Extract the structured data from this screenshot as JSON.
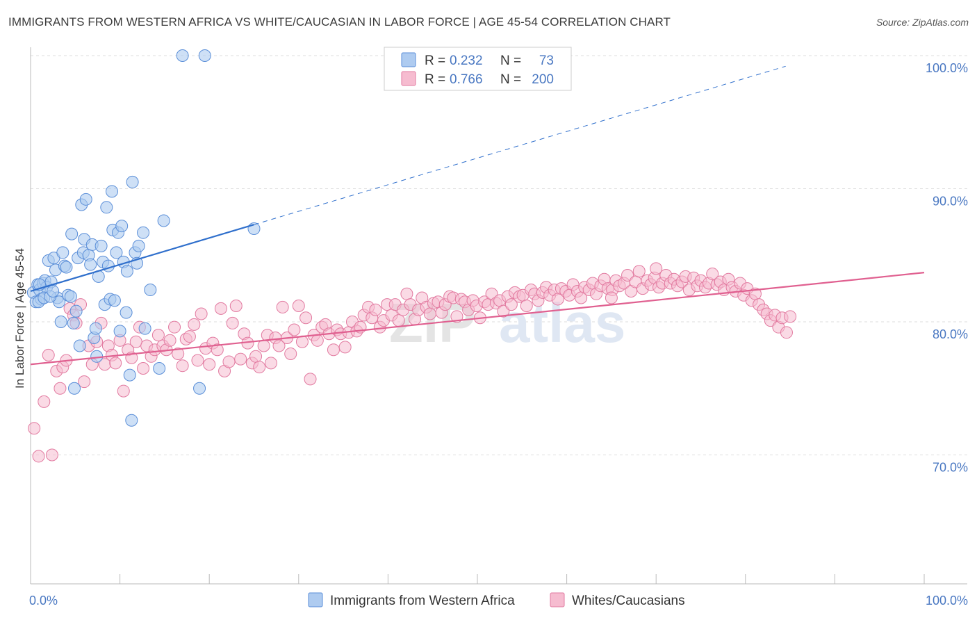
{
  "title": "IMMIGRANTS FROM WESTERN AFRICA VS WHITE/CAUCASIAN IN LABOR FORCE | AGE 45-54 CORRELATION CHART",
  "source": "Source: ZipAtlas.com",
  "watermark": {
    "zip": "ZIP",
    "atlas": "atlas"
  },
  "colors": {
    "blue_fill": "#aecbf0",
    "blue_stroke": "#5a8ed8",
    "blue_line": "#2f6fcc",
    "pink_fill": "#f6bcd0",
    "pink_stroke": "#e27aa0",
    "pink_line": "#e06090",
    "tick_label": "#4a78c2",
    "grid": "#dddddd"
  },
  "legend": {
    "rows": [
      {
        "r_label": "R =",
        "r_value": "0.232",
        "n_label": "N =",
        "n_value": "73"
      },
      {
        "r_label": "R =",
        "r_value": "0.766",
        "n_label": "N =",
        "n_value": "200"
      }
    ]
  },
  "bottom_legend": [
    "Immigrants from Western Africa",
    "Whites/Caucasians"
  ],
  "chart_data": {
    "type": "scatter",
    "ylabel": "In Labor Force | Age 45-54",
    "xlim": [
      0,
      100
    ],
    "ylim": [
      60.5,
      101
    ],
    "x_tick_labels": [
      "0.0%",
      "100.0%"
    ],
    "y_ticks": [
      {
        "value": 100,
        "label": "100.0%"
      },
      {
        "value": 90,
        "label": "90.0%"
      },
      {
        "value": 80,
        "label": "80.0%"
      },
      {
        "value": 70,
        "label": "70.0%"
      }
    ],
    "series": [
      {
        "name": "Immigrants from Western Africa",
        "r": 0.232,
        "n": 73,
        "trend": {
          "x0": 0,
          "y0": 82.3,
          "x1": 25,
          "y1": 87.3,
          "x_dash_end": 84.5
        },
        "points": [
          [
            0.3,
            82.2
          ],
          [
            0.6,
            81.5
          ],
          [
            0.8,
            82.8
          ],
          [
            1.0,
            82.4
          ],
          [
            1.2,
            81.7
          ],
          [
            1.4,
            82.9
          ],
          [
            1.6,
            83.1
          ],
          [
            1.8,
            82.6
          ],
          [
            2.0,
            84.6
          ],
          [
            2.3,
            83.0
          ],
          [
            2.6,
            84.8
          ],
          [
            2.8,
            83.9
          ],
          [
            3.0,
            81.8
          ],
          [
            3.2,
            81.5
          ],
          [
            3.4,
            80.0
          ],
          [
            3.6,
            85.2
          ],
          [
            3.8,
            84.2
          ],
          [
            4.0,
            84.1
          ],
          [
            4.2,
            82.0
          ],
          [
            4.5,
            81.9
          ],
          [
            4.6,
            86.6
          ],
          [
            4.8,
            79.9
          ],
          [
            5.1,
            80.8
          ],
          [
            5.3,
            84.8
          ],
          [
            5.5,
            78.2
          ],
          [
            5.7,
            88.8
          ],
          [
            5.9,
            85.2
          ],
          [
            6.0,
            86.2
          ],
          [
            6.2,
            89.2
          ],
          [
            6.5,
            85.0
          ],
          [
            6.7,
            84.3
          ],
          [
            6.9,
            85.8
          ],
          [
            7.1,
            78.8
          ],
          [
            7.3,
            79.5
          ],
          [
            7.4,
            77.4
          ],
          [
            7.6,
            83.4
          ],
          [
            7.9,
            85.7
          ],
          [
            8.1,
            84.5
          ],
          [
            8.3,
            81.3
          ],
          [
            8.5,
            88.6
          ],
          [
            8.7,
            84.2
          ],
          [
            8.9,
            81.7
          ],
          [
            9.1,
            89.8
          ],
          [
            9.2,
            86.9
          ],
          [
            9.4,
            81.6
          ],
          [
            9.6,
            85.2
          ],
          [
            9.8,
            86.7
          ],
          [
            10.0,
            79.3
          ],
          [
            10.2,
            87.2
          ],
          [
            10.4,
            84.5
          ],
          [
            10.7,
            80.7
          ],
          [
            10.8,
            83.8
          ],
          [
            11.1,
            76.0
          ],
          [
            11.4,
            90.5
          ],
          [
            11.7,
            85.2
          ],
          [
            11.9,
            84.4
          ],
          [
            12.1,
            85.7
          ],
          [
            12.6,
            86.7
          ],
          [
            12.8,
            79.5
          ],
          [
            13.4,
            82.4
          ],
          [
            14.4,
            76.5
          ],
          [
            14.9,
            87.6
          ],
          [
            17.0,
            100.0
          ],
          [
            19.5,
            100.0
          ],
          [
            18.9,
            75.0
          ],
          [
            25.0,
            87.0
          ],
          [
            11.3,
            72.6
          ],
          [
            4.9,
            75.0
          ],
          [
            1.0,
            82.8
          ],
          [
            0.9,
            81.5
          ],
          [
            1.5,
            81.8
          ],
          [
            2.2,
            81.9
          ],
          [
            2.5,
            82.3
          ]
        ]
      },
      {
        "name": "Whites/Caucasians",
        "r": 0.766,
        "n": 200,
        "trend": {
          "x0": 0,
          "y0": 76.8,
          "x1": 100,
          "y1": 83.7
        },
        "points": [
          [
            0.4,
            72.0
          ],
          [
            0.9,
            69.9
          ],
          [
            1.5,
            74.0
          ],
          [
            2.0,
            77.5
          ],
          [
            2.4,
            70.0
          ],
          [
            2.9,
            76.3
          ],
          [
            3.3,
            75.0
          ],
          [
            3.6,
            76.6
          ],
          [
            4.0,
            77.1
          ],
          [
            4.4,
            81.0
          ],
          [
            4.8,
            80.5
          ],
          [
            5.1,
            79.9
          ],
          [
            5.6,
            81.3
          ],
          [
            6.0,
            75.5
          ],
          [
            6.5,
            78.2
          ],
          [
            6.9,
            76.8
          ],
          [
            7.4,
            78.5
          ],
          [
            7.9,
            79.9
          ],
          [
            8.3,
            76.8
          ],
          [
            8.7,
            78.2
          ],
          [
            9.1,
            77.5
          ],
          [
            9.5,
            76.9
          ],
          [
            10.0,
            78.6
          ],
          [
            10.4,
            74.8
          ],
          [
            10.9,
            77.9
          ],
          [
            11.3,
            77.3
          ],
          [
            11.8,
            78.5
          ],
          [
            12.2,
            79.6
          ],
          [
            12.6,
            76.5
          ],
          [
            13.0,
            78.2
          ],
          [
            13.5,
            77.4
          ],
          [
            13.9,
            77.9
          ],
          [
            14.3,
            79.0
          ],
          [
            14.8,
            78.2
          ],
          [
            15.2,
            77.9
          ],
          [
            15.6,
            78.6
          ],
          [
            16.1,
            79.6
          ],
          [
            16.5,
            77.6
          ],
          [
            17.0,
            76.7
          ],
          [
            17.4,
            78.7
          ],
          [
            17.8,
            78.9
          ],
          [
            18.3,
            79.8
          ],
          [
            18.7,
            77.1
          ],
          [
            19.1,
            80.6
          ],
          [
            19.6,
            78.0
          ],
          [
            20.0,
            76.8
          ],
          [
            20.4,
            78.4
          ],
          [
            20.9,
            77.9
          ],
          [
            21.3,
            81.0
          ],
          [
            21.7,
            76.3
          ],
          [
            22.2,
            77.0
          ],
          [
            22.6,
            79.9
          ],
          [
            23.0,
            81.2
          ],
          [
            23.5,
            77.2
          ],
          [
            23.9,
            79.1
          ],
          [
            24.3,
            78.4
          ],
          [
            24.8,
            76.9
          ],
          [
            25.2,
            77.4
          ],
          [
            25.6,
            76.6
          ],
          [
            26.1,
            78.2
          ],
          [
            26.5,
            79.0
          ],
          [
            26.9,
            76.9
          ],
          [
            27.4,
            78.8
          ],
          [
            27.8,
            78.2
          ],
          [
            28.2,
            81.1
          ],
          [
            28.7,
            78.8
          ],
          [
            29.1,
            77.6
          ],
          [
            29.5,
            79.4
          ],
          [
            30.0,
            81.2
          ],
          [
            30.4,
            78.5
          ],
          [
            30.8,
            80.3
          ],
          [
            31.3,
            75.7
          ],
          [
            31.7,
            79.0
          ],
          [
            32.1,
            78.6
          ],
          [
            32.6,
            79.6
          ],
          [
            33.0,
            79.8
          ],
          [
            33.4,
            79.1
          ],
          [
            33.9,
            77.9
          ],
          [
            34.3,
            79.4
          ],
          [
            34.7,
            79.1
          ],
          [
            35.2,
            78.1
          ],
          [
            35.6,
            79.2
          ],
          [
            36.0,
            80.0
          ],
          [
            36.5,
            79.3
          ],
          [
            36.9,
            79.6
          ],
          [
            37.3,
            80.5
          ],
          [
            37.8,
            81.1
          ],
          [
            38.2,
            80.3
          ],
          [
            38.6,
            80.9
          ],
          [
            39.1,
            79.6
          ],
          [
            39.5,
            80.1
          ],
          [
            39.9,
            81.3
          ],
          [
            40.4,
            80.5
          ],
          [
            40.8,
            81.3
          ],
          [
            41.2,
            80.1
          ],
          [
            41.7,
            80.9
          ],
          [
            42.1,
            82.1
          ],
          [
            42.5,
            81.3
          ],
          [
            43.0,
            80.2
          ],
          [
            43.4,
            80.9
          ],
          [
            43.8,
            81.8
          ],
          [
            44.3,
            81.1
          ],
          [
            44.7,
            80.6
          ],
          [
            45.1,
            81.4
          ],
          [
            45.6,
            81.5
          ],
          [
            46.0,
            80.7
          ],
          [
            46.4,
            81.3
          ],
          [
            46.9,
            81.9
          ],
          [
            47.3,
            81.8
          ],
          [
            47.7,
            80.4
          ],
          [
            48.2,
            81.7
          ],
          [
            48.6,
            81.5
          ],
          [
            49.0,
            80.9
          ],
          [
            49.5,
            81.6
          ],
          [
            49.9,
            81.2
          ],
          [
            50.3,
            80.3
          ],
          [
            50.8,
            81.5
          ],
          [
            51.2,
            81.3
          ],
          [
            51.6,
            82.1
          ],
          [
            52.1,
            81.4
          ],
          [
            52.5,
            81.6
          ],
          [
            52.9,
            80.8
          ],
          [
            53.4,
            81.9
          ],
          [
            53.8,
            81.3
          ],
          [
            54.2,
            82.2
          ],
          [
            54.7,
            81.9
          ],
          [
            55.1,
            82.0
          ],
          [
            55.5,
            81.2
          ],
          [
            56.0,
            82.4
          ],
          [
            56.4,
            82.1
          ],
          [
            56.8,
            81.6
          ],
          [
            57.3,
            82.2
          ],
          [
            57.7,
            82.6
          ],
          [
            58.1,
            82.0
          ],
          [
            58.6,
            82.4
          ],
          [
            59.0,
            81.7
          ],
          [
            59.4,
            82.5
          ],
          [
            59.9,
            82.3
          ],
          [
            60.3,
            82.0
          ],
          [
            60.7,
            82.8
          ],
          [
            61.2,
            82.3
          ],
          [
            61.6,
            81.8
          ],
          [
            62.0,
            82.6
          ],
          [
            62.5,
            82.4
          ],
          [
            62.9,
            82.9
          ],
          [
            63.3,
            82.1
          ],
          [
            63.8,
            82.7
          ],
          [
            64.2,
            83.2
          ],
          [
            64.6,
            82.5
          ],
          [
            65.1,
            82.4
          ],
          [
            65.5,
            83.1
          ],
          [
            65.9,
            82.7
          ],
          [
            66.4,
            82.9
          ],
          [
            66.8,
            83.5
          ],
          [
            67.2,
            82.3
          ],
          [
            67.7,
            83.0
          ],
          [
            68.1,
            83.8
          ],
          [
            68.5,
            82.5
          ],
          [
            69.0,
            83.1
          ],
          [
            69.4,
            82.8
          ],
          [
            69.8,
            83.3
          ],
          [
            70.3,
            82.6
          ],
          [
            70.7,
            82.9
          ],
          [
            71.1,
            83.5
          ],
          [
            71.6,
            82.9
          ],
          [
            72.0,
            83.2
          ],
          [
            72.4,
            82.7
          ],
          [
            72.9,
            83.0
          ],
          [
            73.3,
            83.4
          ],
          [
            73.7,
            82.4
          ],
          [
            74.2,
            83.3
          ],
          [
            74.6,
            82.7
          ],
          [
            75.0,
            83.1
          ],
          [
            75.5,
            82.6
          ],
          [
            75.9,
            82.9
          ],
          [
            76.3,
            83.6
          ],
          [
            76.8,
            82.8
          ],
          [
            77.2,
            83.0
          ],
          [
            77.6,
            82.4
          ],
          [
            78.1,
            83.2
          ],
          [
            78.5,
            82.6
          ],
          [
            78.9,
            82.3
          ],
          [
            79.4,
            82.9
          ],
          [
            79.8,
            82.0
          ],
          [
            80.2,
            82.5
          ],
          [
            80.7,
            81.6
          ],
          [
            81.1,
            82.1
          ],
          [
            81.5,
            81.3
          ],
          [
            82.0,
            80.9
          ],
          [
            82.4,
            80.6
          ],
          [
            82.8,
            80.1
          ],
          [
            83.3,
            80.5
          ],
          [
            83.7,
            79.6
          ],
          [
            84.1,
            80.3
          ],
          [
            84.6,
            79.2
          ],
          [
            85.0,
            80.4
          ],
          [
            65.0,
            81.8
          ],
          [
            70.0,
            84.0
          ]
        ]
      }
    ]
  }
}
